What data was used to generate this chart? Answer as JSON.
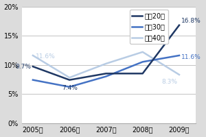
{
  "years": [
    "2005年",
    "2006年",
    "2007年",
    "2008年",
    "2009年"
  ],
  "series": [
    {
      "label": "女椕20代",
      "values": [
        9.7,
        7.4,
        8.5,
        8.5,
        16.8
      ],
      "color": "#1F3864",
      "linewidth": 1.8,
      "zorder": 3
    },
    {
      "label": "女椕30代",
      "values": [
        7.4,
        6.2,
        8.0,
        10.5,
        11.6
      ],
      "color": "#4472C4",
      "linewidth": 1.8,
      "zorder": 2
    },
    {
      "label": "女椕40代",
      "values": [
        11.6,
        7.8,
        10.2,
        12.2,
        8.3
      ],
      "color": "#B8CCE4",
      "linewidth": 1.8,
      "zorder": 1
    }
  ],
  "ylim": [
    0,
    20
  ],
  "yticks": [
    0,
    5,
    10,
    15,
    20
  ],
  "background_color": "#DCDCDC",
  "plot_bg_color": "#FFFFFF",
  "grid_color": "#AAAAAA",
  "legend_fontsize": 7,
  "tick_fontsize": 7,
  "ann_fontsize": 6.5
}
